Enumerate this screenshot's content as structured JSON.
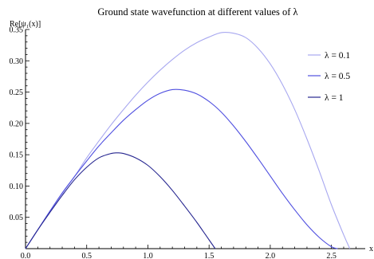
{
  "chart_data": {
    "type": "line",
    "title": "Ground state wavefunction at different values of λ",
    "xlabel": "x",
    "ylabel": "Re[ψ₁(x)]",
    "xlim": [
      0.0,
      2.75
    ],
    "ylim": [
      0.0,
      0.35
    ],
    "x_ticks": [
      "0.0",
      "0.5",
      "1.0",
      "1.5",
      "2.0",
      "2.5"
    ],
    "y_ticks": [
      "0.05",
      "0.10",
      "0.15",
      "0.20",
      "0.25",
      "0.30",
      "0.35"
    ],
    "grid": false,
    "legend_position": "right",
    "series": [
      {
        "name": "λ = 0.1",
        "color": "#a8a8f0",
        "x": [
          0.0,
          0.1,
          0.2,
          0.3,
          0.4,
          0.5,
          0.6,
          0.7,
          0.8,
          0.9,
          1.0,
          1.1,
          1.2,
          1.3,
          1.4,
          1.5,
          1.6,
          1.7,
          1.8,
          1.9,
          2.0,
          2.1,
          2.2,
          2.3,
          2.4,
          2.5,
          2.6,
          2.65
        ],
        "y": [
          0.0,
          0.03,
          0.06,
          0.088,
          0.115,
          0.145,
          0.172,
          0.198,
          0.222,
          0.245,
          0.266,
          0.285,
          0.302,
          0.317,
          0.329,
          0.338,
          0.345,
          0.344,
          0.337,
          0.32,
          0.295,
          0.262,
          0.222,
          0.175,
          0.124,
          0.07,
          0.022,
          0.0
        ]
      },
      {
        "name": "λ = 0.5",
        "color": "#5050e0",
        "x": [
          0.0,
          0.1,
          0.2,
          0.3,
          0.4,
          0.5,
          0.6,
          0.7,
          0.8,
          0.9,
          1.0,
          1.1,
          1.2,
          1.3,
          1.4,
          1.5,
          1.6,
          1.7,
          1.8,
          1.9,
          2.0,
          2.1,
          2.2,
          2.3,
          2.4,
          2.5,
          2.55
        ],
        "y": [
          0.0,
          0.03,
          0.06,
          0.089,
          0.115,
          0.14,
          0.164,
          0.185,
          0.205,
          0.222,
          0.237,
          0.248,
          0.254,
          0.253,
          0.247,
          0.235,
          0.218,
          0.196,
          0.171,
          0.144,
          0.116,
          0.088,
          0.062,
          0.038,
          0.018,
          0.003,
          0.0
        ]
      },
      {
        "name": "λ = 1",
        "color": "#262690",
        "x": [
          0.0,
          0.1,
          0.2,
          0.3,
          0.4,
          0.5,
          0.6,
          0.7,
          0.75,
          0.8,
          0.9,
          1.0,
          1.1,
          1.2,
          1.3,
          1.4,
          1.5,
          1.55
        ],
        "y": [
          0.0,
          0.03,
          0.058,
          0.085,
          0.11,
          0.13,
          0.145,
          0.152,
          0.153,
          0.152,
          0.145,
          0.133,
          0.115,
          0.093,
          0.068,
          0.042,
          0.014,
          0.0
        ]
      }
    ]
  }
}
